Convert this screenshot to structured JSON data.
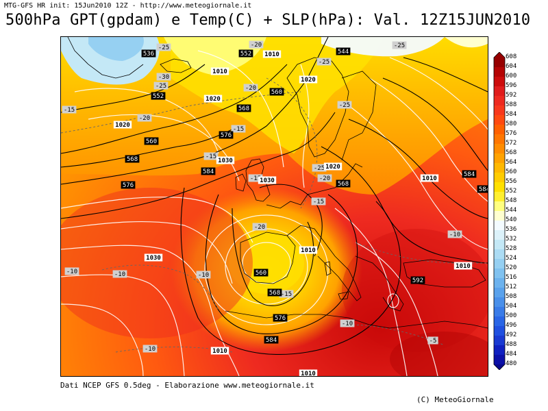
{
  "header": {
    "info_line": "MTG-GFS HR init: 15Jun2010 12Z - http://www.meteogiornale.it",
    "title": "500hPa GPT(gpdam) e Temp(C) + SLP(hPa): Val. 12Z15JUN2010"
  },
  "footer": {
    "source": "Dati NCEP GFS 0.5deg - Elaborazione www.meteogiornale.it",
    "copyright": "(C) MeteoGiornale"
  },
  "legend": {
    "levels": [
      480,
      484,
      488,
      492,
      496,
      500,
      504,
      508,
      512,
      516,
      520,
      524,
      528,
      532,
      536,
      540,
      544,
      548,
      552,
      556,
      560,
      564,
      568,
      572,
      576,
      580,
      584,
      588,
      592,
      596,
      600,
      604,
      608
    ],
    "colors": [
      "#08088c",
      "#0c10a8",
      "#1020c0",
      "#1a3ad2",
      "#2050e0",
      "#2a66e6",
      "#3a7ce8",
      "#4a90ea",
      "#5aa2ec",
      "#6cb2ee",
      "#80c2f0",
      "#96d0f2",
      "#acdcf4",
      "#c4e8f6",
      "#dcf2fa",
      "#f4fbff",
      "#ffffd0",
      "#ffff80",
      "#ffef30",
      "#ffe000",
      "#ffcc00",
      "#ffb800",
      "#ffa200",
      "#ff8c00",
      "#ff7600",
      "#ff6000",
      "#ff4a10",
      "#f8381c",
      "#ee2a20",
      "#e01c1c",
      "#cc0c0c",
      "#b40404",
      "#960000"
    ]
  },
  "map_labels": {
    "gpt": [
      {
        "text": "536"
      },
      {
        "text": "552"
      },
      {
        "text": "552"
      },
      {
        "text": "560"
      },
      {
        "text": "568"
      },
      {
        "text": "560"
      },
      {
        "text": "568"
      },
      {
        "text": "576"
      },
      {
        "text": "576"
      },
      {
        "text": "584"
      },
      {
        "text": "544"
      },
      {
        "text": "568"
      },
      {
        "text": "560"
      },
      {
        "text": "568"
      },
      {
        "text": "576"
      },
      {
        "text": "584"
      },
      {
        "text": "584"
      },
      {
        "text": "584"
      },
      {
        "text": "592"
      }
    ],
    "slp": [
      {
        "text": "1010"
      },
      {
        "text": "1010"
      },
      {
        "text": "1020"
      },
      {
        "text": "1020"
      },
      {
        "text": "1020"
      },
      {
        "text": "1030"
      },
      {
        "text": "1030"
      },
      {
        "text": "1020"
      },
      {
        "text": "1010"
      },
      {
        "text": "1030"
      },
      {
        "text": "1010"
      },
      {
        "text": "1010"
      },
      {
        "text": "1010"
      },
      {
        "text": "1010"
      }
    ],
    "temp": [
      {
        "text": "-25"
      },
      {
        "text": "-30"
      },
      {
        "text": "-25"
      },
      {
        "text": "-20"
      },
      {
        "text": "-20"
      },
      {
        "text": "-25"
      },
      {
        "text": "-25"
      },
      {
        "text": "-15"
      },
      {
        "text": "-20"
      },
      {
        "text": "-15"
      },
      {
        "text": "-15"
      },
      {
        "text": "-15"
      },
      {
        "text": "-25"
      },
      {
        "text": "-20"
      },
      {
        "text": "-15"
      },
      {
        "text": "-20"
      },
      {
        "text": "-15"
      },
      {
        "text": "-10"
      },
      {
        "text": "-10"
      },
      {
        "text": "-10"
      },
      {
        "text": "-10"
      },
      {
        "text": "-10"
      },
      {
        "text": "-10"
      },
      {
        "text": "-5"
      },
      {
        "text": "-25"
      }
    ]
  }
}
